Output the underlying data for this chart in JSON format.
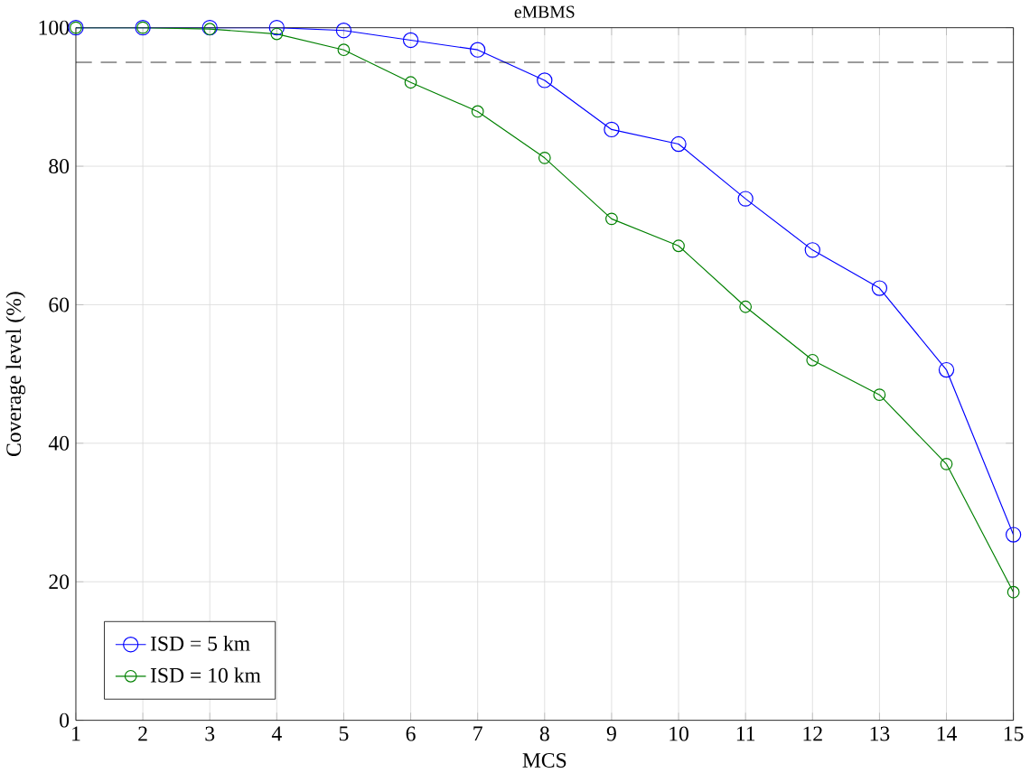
{
  "chart_data": {
    "type": "line",
    "title": "eMBMS",
    "xlabel": "MCS",
    "ylabel": "Coverage level (%)",
    "x": [
      1,
      2,
      3,
      4,
      5,
      6,
      7,
      8,
      9,
      10,
      11,
      12,
      13,
      14,
      15
    ],
    "series": [
      {
        "name": "ISD = 5 km",
        "color": "#0000ff",
        "values": [
          100,
          100,
          100,
          100,
          99.6,
          98.2,
          96.8,
          92.4,
          85.3,
          83.2,
          75.3,
          67.9,
          62.4,
          50.6,
          26.8
        ]
      },
      {
        "name": "ISD = 10 km",
        "color": "#008000",
        "values": [
          100,
          100,
          99.8,
          99.1,
          96.8,
          92.1,
          87.9,
          81.2,
          72.4,
          68.5,
          59.7,
          52,
          47,
          37,
          18.5
        ]
      }
    ],
    "xlim": [
      1,
      15
    ],
    "ylim": [
      0,
      100
    ],
    "xticks": [
      1,
      2,
      3,
      4,
      5,
      6,
      7,
      8,
      9,
      10,
      11,
      12,
      13,
      14,
      15
    ],
    "yticks": [
      0,
      20,
      40,
      60,
      80,
      100
    ],
    "ref_lines": [
      {
        "axis": "y",
        "value": 95,
        "color": "#000000",
        "line_style": "dashed"
      }
    ],
    "grid": true,
    "legend": "bottom left",
    "marker": "circle",
    "line_style": "solid"
  }
}
